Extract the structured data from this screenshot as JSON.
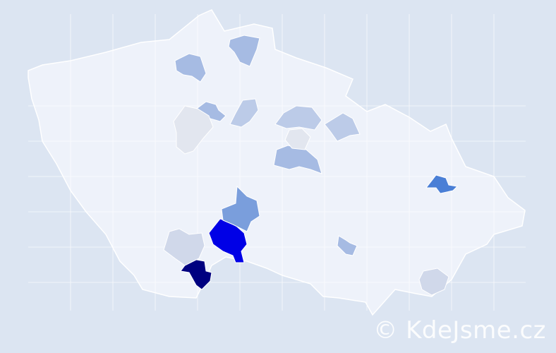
{
  "map": {
    "background_color": "#dce5f2",
    "base_fill": "#eef2fa",
    "border_color": "#ffffff",
    "highlighted_districts": [
      {
        "level": "highest",
        "color": "#000080"
      },
      {
        "level": "very-high",
        "color": "#0000e6"
      },
      {
        "level": "high",
        "color": "#4a7fd6"
      },
      {
        "level": "medium-high",
        "color": "#7a9edc"
      },
      {
        "level": "medium",
        "color": "#a6bbe3"
      },
      {
        "level": "medium-low",
        "color": "#bccbe8"
      },
      {
        "level": "low",
        "color": "#d0d8ea"
      },
      {
        "level": "lowest",
        "color": "#e2e6ef"
      }
    ]
  },
  "watermark": {
    "text": "© KdeJsme.cz"
  }
}
